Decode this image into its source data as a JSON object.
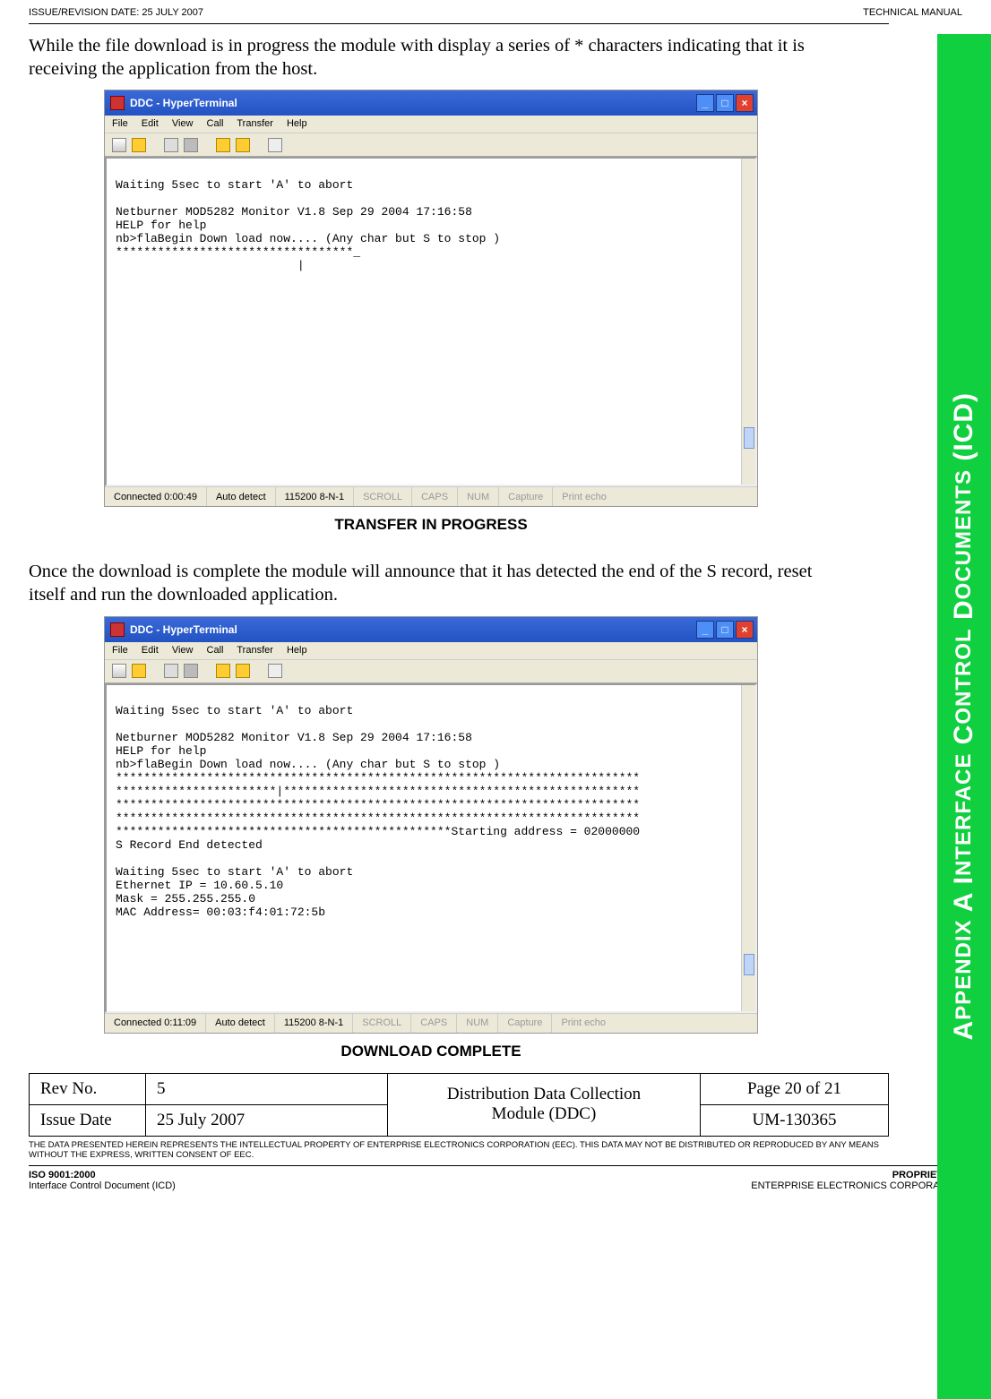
{
  "header": {
    "left": "ISSUE/REVISION DATE:  25 JULY 2007",
    "right": "TECHNICAL MANUAL"
  },
  "intro1": "While the file download is in progress the module with display a series of * characters indicating that it is receiving the application from the host.",
  "screenshot1": {
    "title": "DDC - HyperTerminal",
    "menu": {
      "file": "File",
      "edit": "Edit",
      "view": "View",
      "call": "Call",
      "transfer": "Transfer",
      "help": "Help"
    },
    "term_lines": "\nWaiting 5sec to start 'A' to abort\n\nNetburner MOD5282 Monitor V1.8 Sep 29 2004 17:16:58\nHELP for help\nnb>flaBegin Down load now.... (Any char but S to stop )\n**********************************_\n                          |",
    "status": {
      "conn": "Connected 0:00:49",
      "auto": "Auto detect",
      "baud": "115200 8-N-1",
      "scroll": "SCROLL",
      "caps": "CAPS",
      "num": "NUM",
      "capture": "Capture",
      "print": "Print echo"
    },
    "caption": "TRANSFER IN PROGRESS"
  },
  "intro2": "Once the download is complete the module will announce that it has detected the end of the S record, reset itself and run the downloaded application.",
  "screenshot2": {
    "title": "DDC - HyperTerminal",
    "menu": {
      "file": "File",
      "edit": "Edit",
      "view": "View",
      "call": "Call",
      "transfer": "Transfer",
      "help": "Help"
    },
    "term_lines": "\nWaiting 5sec to start 'A' to abort\n\nNetburner MOD5282 Monitor V1.8 Sep 29 2004 17:16:58\nHELP for help\nnb>flaBegin Down load now.... (Any char but S to stop )\n***************************************************************************\n***********************|***************************************************\n***************************************************************************\n***************************************************************************\n************************************************Starting address = 02000000\nS Record End detected\n\nWaiting 5sec to start 'A' to abort\nEthernet IP = 10.60.5.10\nMask = 255.255.255.0\nMAC Address= 00:03:f4:01:72:5b",
    "status": {
      "conn": "Connected 0:11:09",
      "auto": "Auto detect",
      "baud": "115200 8-N-1",
      "scroll": "SCROLL",
      "caps": "CAPS",
      "num": "NUM",
      "capture": "Capture",
      "print": "Print echo"
    },
    "caption": "DOWNLOAD COMPLETE"
  },
  "footer_table": {
    "rev_label": "Rev No.",
    "rev_val": "5",
    "mid1": "Distribution Data Collection",
    "mid2": "Module (DDC)",
    "page": "Page 20 of 21",
    "date_label": "Issue Date",
    "date_val": "25 July 2007",
    "um": "UM-130365"
  },
  "disclaimer": "THE DATA PRESENTED HEREIN REPRESENTS THE INTELLECTUAL PROPERTY OF ENTERPRISE ELECTRONICS CORPORATION (EEC).  THIS DATA MAY NOT BE DISTRIBUTED OR REPRODUCED BY ANY MEANS WITHOUT THE EXPRESS, WRITTEN CONSENT OF EEC.",
  "page_footer": {
    "iso_bold": "ISO 9001:2000",
    "iso_sub": "Interface Control Document (ICD)",
    "prop_bold": "PROPRIETARY",
    "prop_sub": "ENTERPRISE ELECTRONICS CORPORATION"
  },
  "side_tab_html": "A<span style='font-size:24px'>PPENDIX</span> A  I<span style='font-size:24px'>NTERFACE</span> C<span style='font-size:24px'>ONTROL</span> D<span style='font-size:24px'>OCUMENTS</span> (ICD)",
  "colors": {
    "tab_bg": "#10d040",
    "titlebar_top": "#3a6ad9",
    "titlebar_bottom": "#2353c3"
  }
}
